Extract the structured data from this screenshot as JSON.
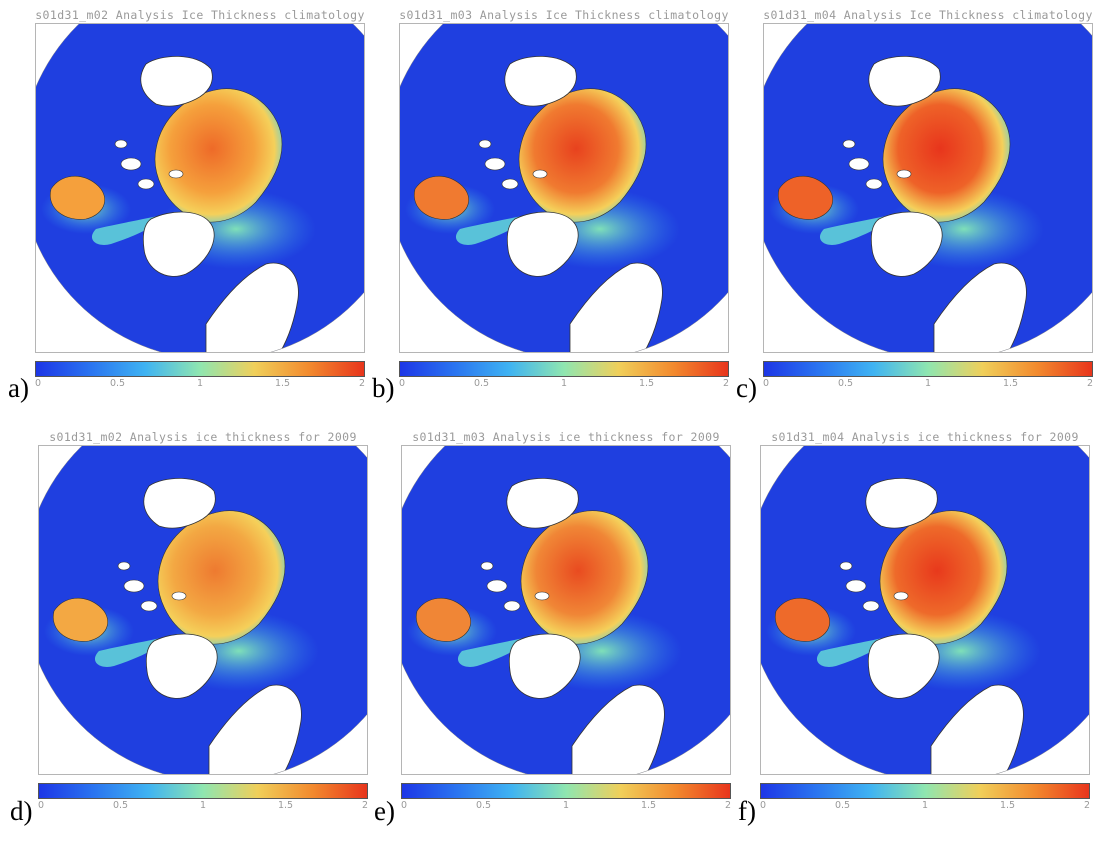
{
  "colorbar": {
    "ticks": [
      "0",
      "0.5",
      "1",
      "1.5",
      "2"
    ],
    "range": [
      0,
      2
    ],
    "colors": [
      "#1d36e6",
      "#2a74f0",
      "#3fb3f2",
      "#8fe6b0",
      "#f0cf5a",
      "#f28a2e",
      "#e8351c"
    ]
  },
  "colors": {
    "ocean": "#1f3fe0",
    "land": "#ffffff",
    "coast": "#333333",
    "ice_thick": "#ee4f1e",
    "ice_mid": "#f59b3a"
  },
  "panels": [
    {
      "label": "a)",
      "title": "s01d31_m02 Analysis Ice Thickness climatology"
    },
    {
      "label": "b)",
      "title": "s01d31_m03 Analysis Ice Thickness climatology"
    },
    {
      "label": "c)",
      "title": "s01d31_m04 Analysis Ice Thickness climatology"
    },
    {
      "label": "d)",
      "title": "s01d31_m02 Analysis ice thickness for 2009"
    },
    {
      "label": "e)",
      "title": "s01d31_m03 Analysis ice thickness for 2009"
    },
    {
      "label": "f)",
      "title": "s01d31_m04 Analysis ice thickness for 2009"
    }
  ]
}
